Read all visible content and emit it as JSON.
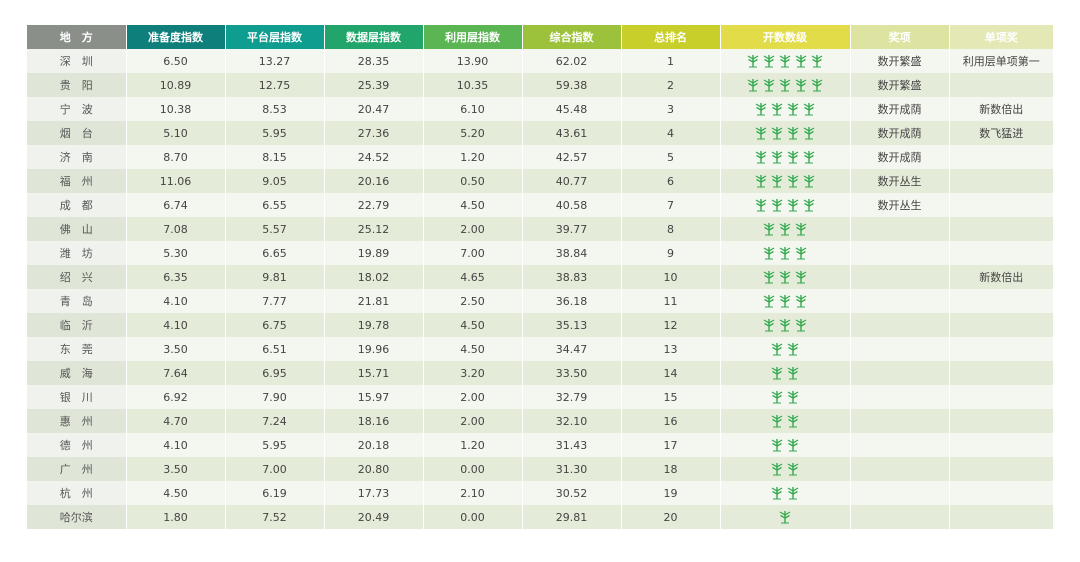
{
  "colors": {
    "header": [
      "#8a8f8a",
      "#0f7f7b",
      "#0f9d90",
      "#21a56a",
      "#5bb553",
      "#9cc23b",
      "#c8cf2a",
      "#e3dc49",
      "#dcdf7b",
      "#dde4a2",
      "#e4e8b4"
    ],
    "tree": "#35a84e"
  },
  "table": {
    "headers": [
      "地　方",
      "准备度指数",
      "平台层指数",
      "数据层指数",
      "利用层指数",
      "综合指数",
      "总排名",
      "开数数级",
      "奖项",
      "单项奖"
    ],
    "rows": [
      {
        "city": "深　圳",
        "prep": "6.50",
        "platform": "13.27",
        "data": "28.35",
        "use": "13.90",
        "total": "62.02",
        "rank": "1",
        "trees": 5,
        "award": "数开繁盛",
        "special": "利用层单项第一"
      },
      {
        "city": "贵　阳",
        "prep": "10.89",
        "platform": "12.75",
        "data": "25.39",
        "use": "10.35",
        "total": "59.38",
        "rank": "2",
        "trees": 5,
        "award": "数开繁盛",
        "special": ""
      },
      {
        "city": "宁　波",
        "prep": "10.38",
        "platform": "8.53",
        "data": "20.47",
        "use": "6.10",
        "total": "45.48",
        "rank": "3",
        "trees": 4,
        "award": "数开成荫",
        "special": "新数倍出"
      },
      {
        "city": "烟　台",
        "prep": "5.10",
        "platform": "5.95",
        "data": "27.36",
        "use": "5.20",
        "total": "43.61",
        "rank": "4",
        "trees": 4,
        "award": "数开成荫",
        "special": "数飞猛进"
      },
      {
        "city": "济　南",
        "prep": "8.70",
        "platform": "8.15",
        "data": "24.52",
        "use": "1.20",
        "total": "42.57",
        "rank": "5",
        "trees": 4,
        "award": "数开成荫",
        "special": ""
      },
      {
        "city": "福　州",
        "prep": "11.06",
        "platform": "9.05",
        "data": "20.16",
        "use": "0.50",
        "total": "40.77",
        "rank": "6",
        "trees": 4,
        "award": "数开丛生",
        "special": ""
      },
      {
        "city": "成　都",
        "prep": "6.74",
        "platform": "6.55",
        "data": "22.79",
        "use": "4.50",
        "total": "40.58",
        "rank": "7",
        "trees": 4,
        "award": "数开丛生",
        "special": ""
      },
      {
        "city": "佛　山",
        "prep": "7.08",
        "platform": "5.57",
        "data": "25.12",
        "use": "2.00",
        "total": "39.77",
        "rank": "8",
        "trees": 3,
        "award": "",
        "special": ""
      },
      {
        "city": "潍　坊",
        "prep": "5.30",
        "platform": "6.65",
        "data": "19.89",
        "use": "7.00",
        "total": "38.84",
        "rank": "9",
        "trees": 3,
        "award": "",
        "special": ""
      },
      {
        "city": "绍　兴",
        "prep": "6.35",
        "platform": "9.81",
        "data": "18.02",
        "use": "4.65",
        "total": "38.83",
        "rank": "10",
        "trees": 3,
        "award": "",
        "special": "新数倍出"
      },
      {
        "city": "青　岛",
        "prep": "4.10",
        "platform": "7.77",
        "data": "21.81",
        "use": "2.50",
        "total": "36.18",
        "rank": "11",
        "trees": 3,
        "award": "",
        "special": ""
      },
      {
        "city": "临　沂",
        "prep": "4.10",
        "platform": "6.75",
        "data": "19.78",
        "use": "4.50",
        "total": "35.13",
        "rank": "12",
        "trees": 3,
        "award": "",
        "special": ""
      },
      {
        "city": "东　莞",
        "prep": "3.50",
        "platform": "6.51",
        "data": "19.96",
        "use": "4.50",
        "total": "34.47",
        "rank": "13",
        "trees": 2,
        "award": "",
        "special": ""
      },
      {
        "city": "威　海",
        "prep": "7.64",
        "platform": "6.95",
        "data": "15.71",
        "use": "3.20",
        "total": "33.50",
        "rank": "14",
        "trees": 2,
        "award": "",
        "special": ""
      },
      {
        "city": "银　川",
        "prep": "6.92",
        "platform": "7.90",
        "data": "15.97",
        "use": "2.00",
        "total": "32.79",
        "rank": "15",
        "trees": 2,
        "award": "",
        "special": ""
      },
      {
        "city": "惠　州",
        "prep": "4.70",
        "platform": "7.24",
        "data": "18.16",
        "use": "2.00",
        "total": "32.10",
        "rank": "16",
        "trees": 2,
        "award": "",
        "special": ""
      },
      {
        "city": "德　州",
        "prep": "4.10",
        "platform": "5.95",
        "data": "20.18",
        "use": "1.20",
        "total": "31.43",
        "rank": "17",
        "trees": 2,
        "award": "",
        "special": ""
      },
      {
        "city": "广　州",
        "prep": "3.50",
        "platform": "7.00",
        "data": "20.80",
        "use": "0.00",
        "total": "31.30",
        "rank": "18",
        "trees": 2,
        "award": "",
        "special": ""
      },
      {
        "city": "杭　州",
        "prep": "4.50",
        "platform": "6.19",
        "data": "17.73",
        "use": "2.10",
        "total": "30.52",
        "rank": "19",
        "trees": 2,
        "award": "",
        "special": ""
      },
      {
        "city": "哈尔滨",
        "prep": "1.80",
        "platform": "7.52",
        "data": "20.49",
        "use": "0.00",
        "total": "29.81",
        "rank": "20",
        "trees": 1,
        "award": "",
        "special": ""
      }
    ]
  }
}
